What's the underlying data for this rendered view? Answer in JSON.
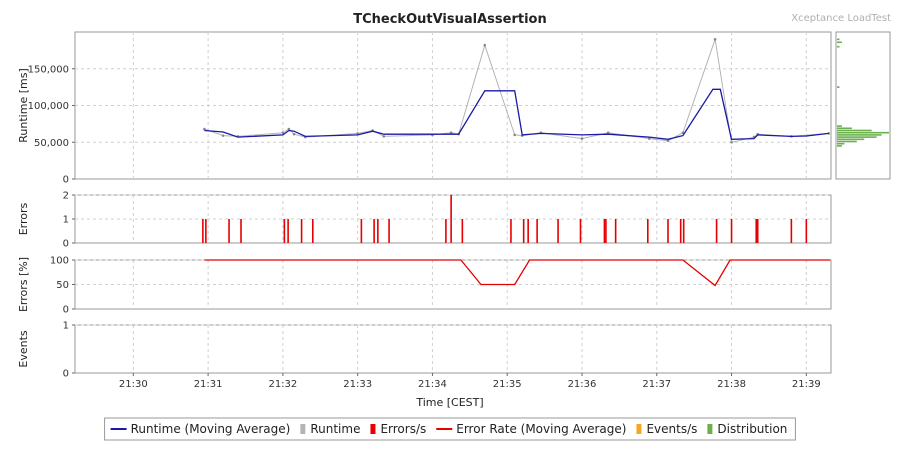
{
  "title": "TCheckOutVisualAssertion",
  "brand": "Xceptance LoadTest",
  "colors": {
    "runtime_avg": "#1a1aa6",
    "runtime": "#b4b4b4",
    "errors": "#e60000",
    "error_rate": "#e60000",
    "events": "#f5a623",
    "distribution": "#6ab04c",
    "grid": "#d0d0d0"
  },
  "chart_data": [
    {
      "type": "line",
      "name": "runtime",
      "ylabel": "Runtime [ms]",
      "ylim": [
        0,
        200000
      ],
      "yticks": [
        0,
        50000,
        100000,
        150000
      ],
      "ytick_labels": [
        "0",
        "50,000",
        "100,000",
        "150,000"
      ],
      "grid": true,
      "series": [
        {
          "name": "Runtime (Moving Average)",
          "x": [
            30.95,
            31.2,
            31.4,
            32.0,
            32.08,
            32.15,
            32.3,
            33.0,
            33.2,
            33.35,
            34.0,
            34.25,
            34.35,
            34.7,
            35.1,
            35.2,
            35.45,
            36.0,
            36.35,
            36.9,
            37.15,
            37.35,
            37.75,
            37.85,
            38.0,
            38.3,
            38.35,
            38.8,
            39.0,
            39.3
          ],
          "y": [
            66000,
            64000,
            57000,
            60000,
            66000,
            65000,
            58000,
            60000,
            65000,
            61000,
            61000,
            61000,
            61000,
            120000,
            120000,
            60000,
            62000,
            60000,
            61000,
            57000,
            54000,
            59000,
            122000,
            122000,
            54000,
            55000,
            60000,
            58000,
            58500,
            62000
          ]
        },
        {
          "name": "Runtime",
          "x": [
            30.95,
            31.2,
            31.4,
            32.0,
            32.08,
            32.15,
            32.3,
            33.0,
            33.2,
            33.35,
            34.0,
            34.25,
            34.35,
            34.7,
            35.1,
            35.2,
            35.45,
            36.0,
            36.35,
            36.9,
            37.15,
            37.35,
            37.78,
            38.0,
            38.3,
            38.35,
            38.8,
            39.3
          ],
          "y": [
            68000,
            59000,
            58000,
            63000,
            68000,
            61000,
            57000,
            62000,
            66000,
            58000,
            60000,
            63000,
            61000,
            182000,
            60000,
            59000,
            63000,
            55000,
            63000,
            55000,
            52000,
            63000,
            190000,
            50000,
            57000,
            61000,
            58000,
            62000
          ]
        }
      ],
      "distribution": {
        "name": "Distribution",
        "bins": [
          45000,
          48000,
          51000,
          54000,
          57000,
          60000,
          63000,
          66000,
          69000,
          72000,
          125000,
          180000,
          186000,
          190000
        ],
        "counts": [
          2,
          3,
          8,
          11,
          16,
          18,
          21,
          14,
          6,
          2,
          1,
          1,
          2,
          1
        ]
      }
    },
    {
      "type": "bar",
      "name": "errors",
      "ylabel": "Errors",
      "ylim": [
        0,
        2
      ],
      "yticks": [
        0,
        1,
        2
      ],
      "ytick_labels": [
        "0",
        "1",
        "2"
      ],
      "grid": true,
      "series": [
        {
          "name": "Errors/s",
          "x": [
            30.93,
            30.97,
            31.28,
            31.44,
            32.02,
            32.07,
            32.25,
            32.4,
            33.05,
            33.22,
            33.27,
            33.42,
            34.18,
            34.25,
            34.4,
            35.05,
            35.22,
            35.28,
            35.4,
            35.68,
            35.98,
            36.3,
            36.32,
            36.45,
            36.88,
            37.15,
            37.32,
            37.36,
            37.8,
            38.0,
            38.33,
            38.35,
            38.8,
            39.0
          ],
          "y": [
            1,
            1,
            1,
            1,
            1,
            1,
            1,
            1,
            1,
            1,
            1,
            1,
            1,
            2,
            1,
            1,
            1,
            1,
            1,
            1,
            1,
            1,
            1,
            1,
            1,
            1,
            1,
            1,
            1,
            1,
            1,
            1,
            1,
            1
          ]
        }
      ]
    },
    {
      "type": "line",
      "name": "error-rate",
      "ylabel": "Errors [%]",
      "ylim": [
        0,
        100
      ],
      "yticks": [
        0,
        50,
        100
      ],
      "ytick_labels": [
        "0",
        "50",
        "100"
      ],
      "grid": true,
      "series": [
        {
          "name": "Error Rate (Moving Average)",
          "x": [
            30.95,
            34.38,
            34.65,
            35.1,
            35.3,
            37.35,
            37.78,
            37.98,
            39.32
          ],
          "y": [
            100,
            100,
            50,
            50,
            100,
            100,
            48,
            100,
            100
          ]
        }
      ]
    },
    {
      "type": "bar",
      "name": "events",
      "ylabel": "Events",
      "ylim": [
        0,
        1
      ],
      "yticks": [
        0,
        1
      ],
      "ytick_labels": [
        "0",
        "1"
      ],
      "grid": true,
      "series": [
        {
          "name": "Events/s",
          "x": [],
          "y": []
        }
      ]
    }
  ],
  "xaxis": {
    "label": "Time [CEST]",
    "range": [
      29.22,
      39.33
    ],
    "ticks": [
      30,
      31,
      32,
      33,
      34,
      35,
      36,
      37,
      38,
      39
    ],
    "tick_labels": [
      "21:30",
      "21:31",
      "21:32",
      "21:33",
      "21:34",
      "21:35",
      "21:36",
      "21:37",
      "21:38",
      "21:39"
    ]
  },
  "legend": {
    "placement": "bottom-center",
    "items": [
      {
        "label": "Runtime (Moving Average)",
        "kind": "line",
        "color": "#1a1aa6"
      },
      {
        "label": "Runtime",
        "kind": "box",
        "color": "#b4b4b4"
      },
      {
        "label": "Errors/s",
        "kind": "box",
        "color": "#e60000"
      },
      {
        "label": "Error Rate (Moving Average)",
        "kind": "line",
        "color": "#e60000"
      },
      {
        "label": "Events/s",
        "kind": "box",
        "color": "#f5a623"
      },
      {
        "label": "Distribution",
        "kind": "box",
        "color": "#6ab04c"
      }
    ]
  }
}
